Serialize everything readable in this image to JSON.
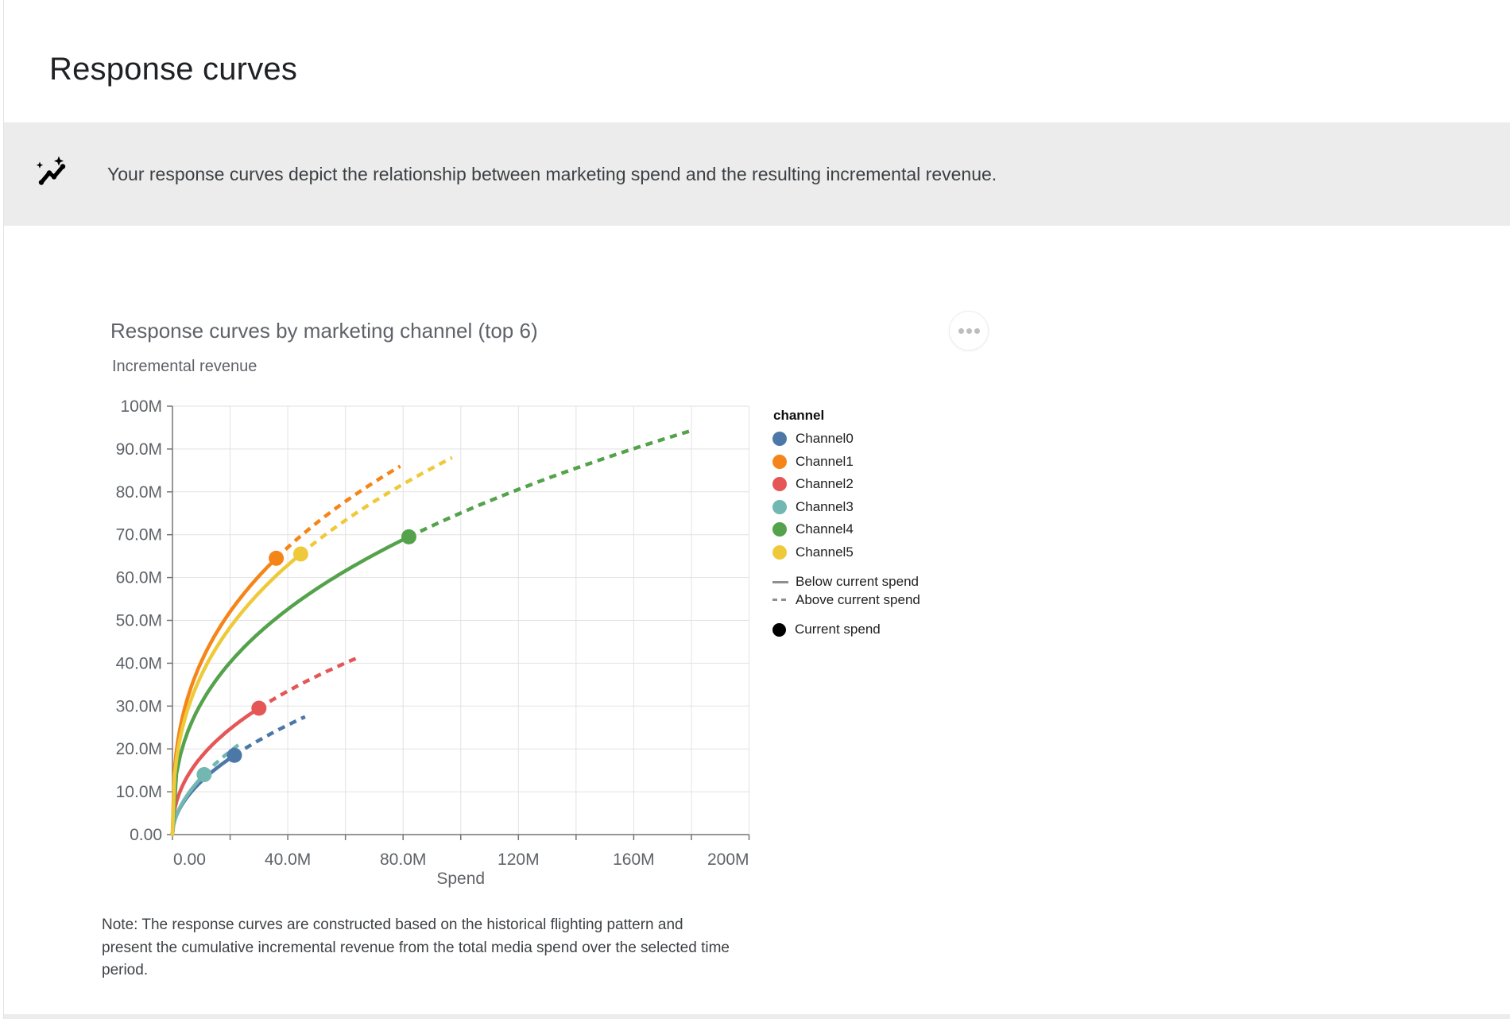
{
  "page": {
    "title": "Response curves",
    "banner": {
      "icon": "auto-graph-insights-icon",
      "text": "Your response curves depict the relationship between marketing spend and the resulting incremental revenue."
    },
    "menu_button": "more-options-ellipsis",
    "note": "Note: The response curves are constructed based on the historical flighting pattern and present the cumulative incremental revenue from the total media spend over the selected time period."
  },
  "chart_data": {
    "type": "line",
    "title": "Response curves by marketing channel (top 6)",
    "subtitle": "Incremental revenue",
    "xlabel": "Spend",
    "ylabel": "Incremental revenue",
    "units": "millions",
    "xlim_millions": [
      0,
      200
    ],
    "ylim_millions": [
      0,
      100
    ],
    "x_grid_step": 20,
    "y_grid_step": 10,
    "grid": true,
    "x_ticks": [
      {
        "value": 0,
        "label": "0.00"
      },
      {
        "value": 40,
        "label": "40.0M"
      },
      {
        "value": 80,
        "label": "80.0M"
      },
      {
        "value": 120,
        "label": "120M"
      },
      {
        "value": 160,
        "label": "160M"
      },
      {
        "value": 200,
        "label": "200M"
      }
    ],
    "y_ticks": [
      {
        "value": 0,
        "label": "0.00"
      },
      {
        "value": 10,
        "label": "10.0M"
      },
      {
        "value": 20,
        "label": "20.0M"
      },
      {
        "value": 30,
        "label": "30.0M"
      },
      {
        "value": 40,
        "label": "40.0M"
      },
      {
        "value": 50,
        "label": "50.0M"
      },
      {
        "value": 60,
        "label": "60.0M"
      },
      {
        "value": 70,
        "label": "70.0M"
      },
      {
        "value": 80,
        "label": "80.0M"
      },
      {
        "value": 90,
        "label": "90.0M"
      },
      {
        "value": 100,
        "label": "100M"
      }
    ],
    "series": [
      {
        "name": "Channel0",
        "color": "#4c78a8",
        "current_spend": {
          "spend": 21.5,
          "incremental_revenue": 18.5
        },
        "curve_end": {
          "spend": 46,
          "incremental_revenue": 27.5
        }
      },
      {
        "name": "Channel1",
        "color": "#f58518",
        "current_spend": {
          "spend": 36,
          "incremental_revenue": 64.5
        },
        "curve_end": {
          "spend": 79,
          "incremental_revenue": 86
        }
      },
      {
        "name": "Channel2",
        "color": "#e45756",
        "current_spend": {
          "spend": 30,
          "incremental_revenue": 29.5
        },
        "curve_end": {
          "spend": 65,
          "incremental_revenue": 41.5
        }
      },
      {
        "name": "Channel3",
        "color": "#72b7b2",
        "current_spend": {
          "spend": 11,
          "incremental_revenue": 14
        },
        "curve_end": {
          "spend": 24,
          "incremental_revenue": 21.5
        }
      },
      {
        "name": "Channel4",
        "color": "#54a24b",
        "current_spend": {
          "spend": 82,
          "incremental_revenue": 69.5
        },
        "curve_end": {
          "spend": 181,
          "incremental_revenue": 94.5
        }
      },
      {
        "name": "Channel5",
        "color": "#eeca3b",
        "current_spend": {
          "spend": 44.5,
          "incremental_revenue": 65.5
        },
        "curve_end": {
          "spend": 97,
          "incremental_revenue": 88
        }
      }
    ],
    "legend": {
      "title": "channel",
      "line_styles": [
        {
          "label": "Below current spend",
          "dashed": false
        },
        {
          "label": "Above current spend",
          "dashed": true
        }
      ],
      "point_label": "Current spend",
      "position": "right"
    },
    "colors": {
      "gridline": "#e2e2e2",
      "axis": "#757575",
      "tick_label": "#5f6368",
      "current_spend_marker": "#000000"
    }
  }
}
